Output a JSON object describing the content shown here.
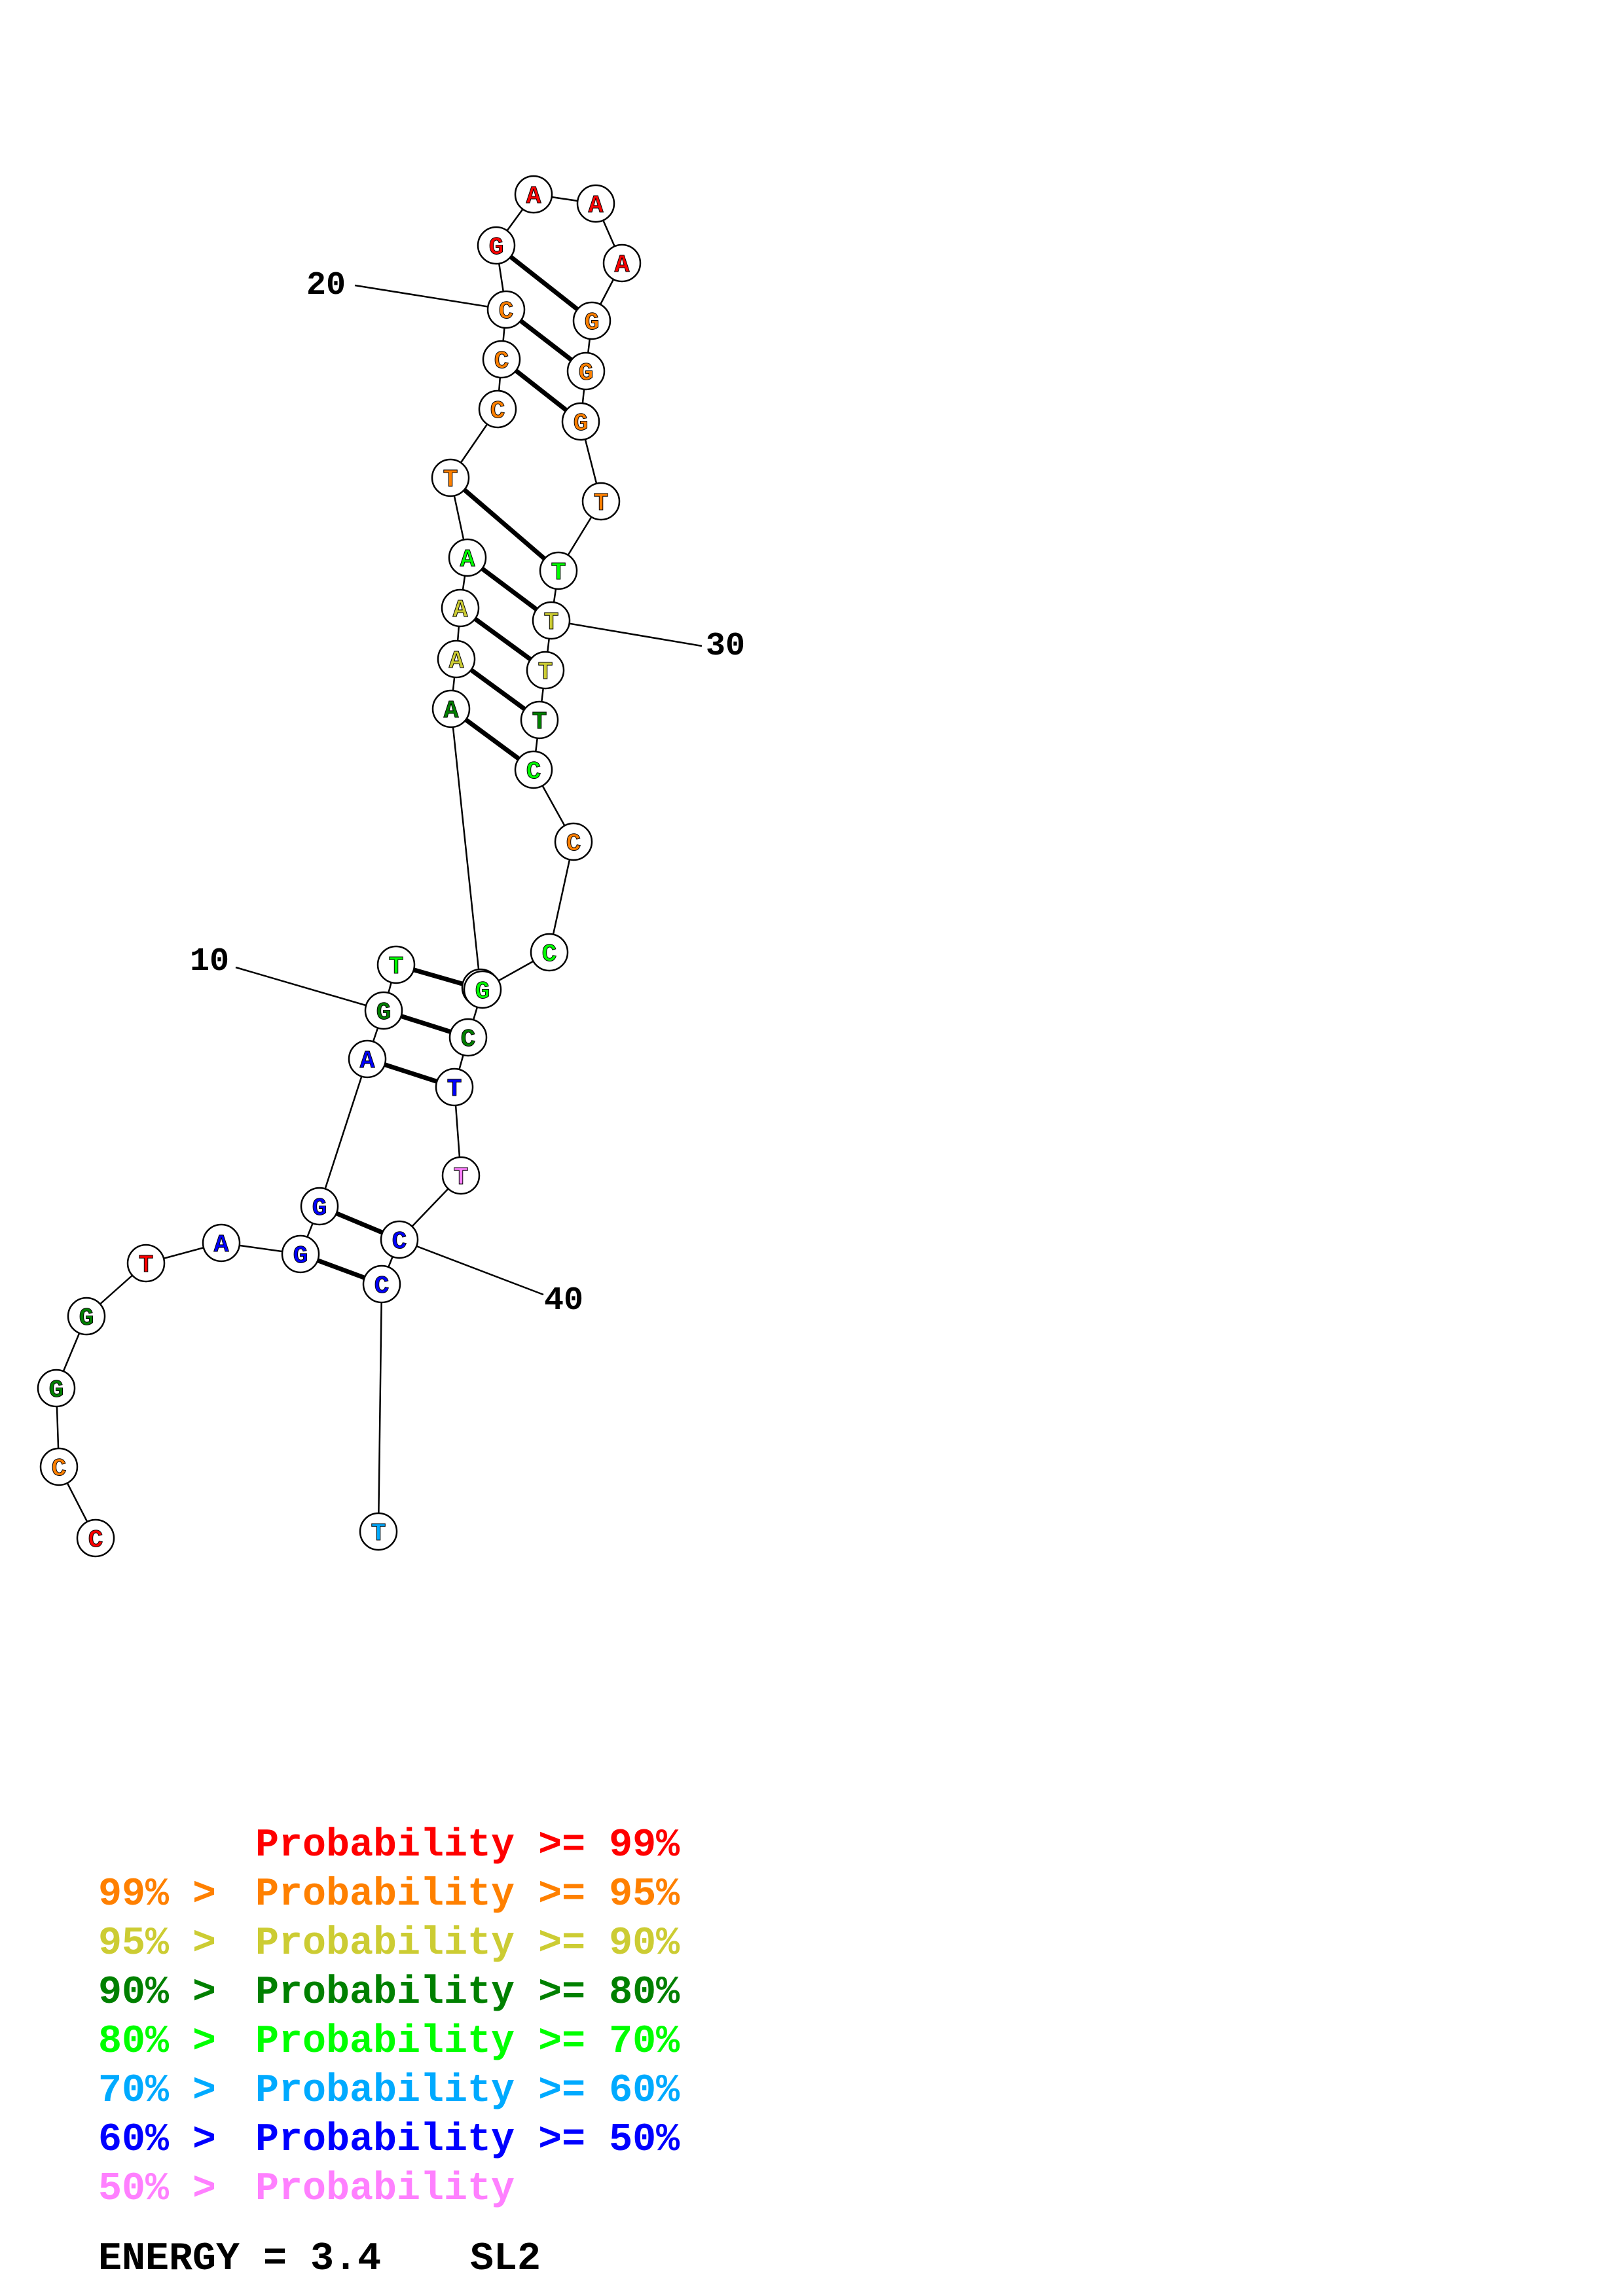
{
  "nucleotides": [
    {
      "letter": "C",
      "color": "#ff0000"
    },
    {
      "letter": "C",
      "color": "#ff8000"
    },
    {
      "letter": "G",
      "color": "#008000"
    },
    {
      "letter": "G",
      "color": "#008000"
    },
    {
      "letter": "T",
      "color": "#ff0000"
    },
    {
      "letter": "A",
      "color": "#0000ff"
    },
    {
      "letter": "G",
      "color": "#0000ff"
    },
    {
      "letter": "G",
      "color": "#0000ff"
    },
    {
      "letter": "A",
      "color": "#0000ff"
    },
    {
      "letter": "G",
      "color": "#008000"
    },
    {
      "letter": "T",
      "color": "#00ff00"
    },
    {
      "letter": "G",
      "color": "#00ff00"
    },
    {
      "letter": "A",
      "color": "#008000"
    },
    {
      "letter": "A",
      "color": "#cccc33"
    },
    {
      "letter": "A",
      "color": "#cccc33"
    },
    {
      "letter": "A",
      "color": "#00ff00"
    },
    {
      "letter": "T",
      "color": "#ff8000"
    },
    {
      "letter": "C",
      "color": "#ff8000"
    },
    {
      "letter": "C",
      "color": "#ff8000"
    },
    {
      "letter": "C",
      "color": "#ff8000"
    },
    {
      "letter": "G",
      "color": "#ff0000"
    },
    {
      "letter": "A",
      "color": "#ff0000"
    },
    {
      "letter": "A",
      "color": "#ff0000"
    },
    {
      "letter": "A",
      "color": "#ff0000"
    },
    {
      "letter": "G",
      "color": "#ff8000"
    },
    {
      "letter": "G",
      "color": "#ff8000"
    },
    {
      "letter": "G",
      "color": "#ff8000"
    },
    {
      "letter": "T",
      "color": "#ff8000"
    },
    {
      "letter": "T",
      "color": "#00ff00"
    },
    {
      "letter": "T",
      "color": "#cccc33"
    },
    {
      "letter": "T",
      "color": "#cccc33"
    },
    {
      "letter": "T",
      "color": "#008000"
    },
    {
      "letter": "C",
      "color": "#00ff00"
    },
    {
      "letter": "C",
      "color": "#ff8000"
    },
    {
      "letter": "C",
      "color": "#00ff00"
    },
    {
      "letter": "G",
      "color": "#00ff00"
    },
    {
      "letter": "C",
      "color": "#008000"
    },
    {
      "letter": "T",
      "color": "#0000ff"
    },
    {
      "letter": "T",
      "color": "#ff80ff"
    },
    {
      "letter": "C",
      "color": "#0000ff"
    },
    {
      "letter": "C",
      "color": "#0000ff"
    },
    {
      "letter": "T",
      "color": "#00aaff"
    }
  ],
  "base_pairs": [
    [
      7,
      41
    ],
    [
      8,
      40
    ],
    [
      9,
      38
    ],
    [
      10,
      37
    ],
    [
      11,
      36
    ],
    [
      13,
      33
    ],
    [
      14,
      32
    ],
    [
      15,
      31
    ],
    [
      16,
      30
    ],
    [
      17,
      29
    ],
    [
      19,
      27
    ],
    [
      20,
      26
    ],
    [
      21,
      25
    ]
  ],
  "position_labels": [
    {
      "text": "10",
      "nucleotide": 10
    },
    {
      "text": "20",
      "nucleotide": 20
    },
    {
      "text": "30",
      "nucleotide": 30
    },
    {
      "text": "40",
      "nucleotide": 40
    }
  ],
  "legend": [
    {
      "prefix": "     ",
      "text": "Probability >= 99%",
      "color": "#ff0000"
    },
    {
      "prefix": "99% > ",
      "text": "Probability >= 95%",
      "color": "#ff8000"
    },
    {
      "prefix": "95% > ",
      "text": "Probability >= 90%",
      "color": "#cccc33"
    },
    {
      "prefix": "90% > ",
      "text": "Probability >= 80%",
      "color": "#008000"
    },
    {
      "prefix": "80% > ",
      "text": "Probability >= 70%",
      "color": "#00ff00"
    },
    {
      "prefix": "70% > ",
      "text": "Probability >= 60%",
      "color": "#00aaff"
    },
    {
      "prefix": "60% > ",
      "text": "Probability >= 50%",
      "color": "#0000ff"
    },
    {
      "prefix": "50% > ",
      "text": "Probability",
      "color": "#ff80ff"
    }
  ],
  "energy_label": "ENERGY = 3.4",
  "structure_name": "SL2"
}
